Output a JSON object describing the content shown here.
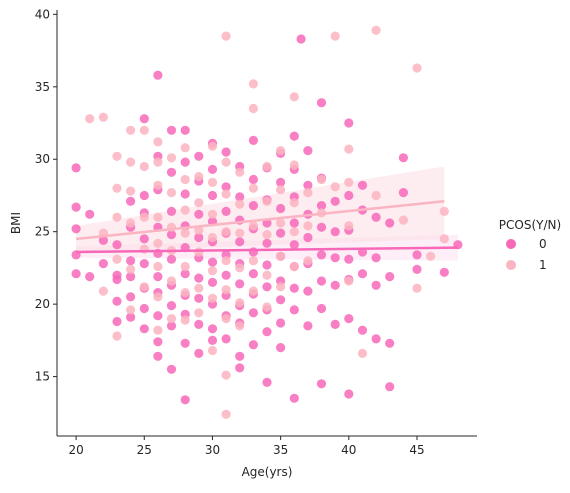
{
  "chart_data": {
    "type": "scatter",
    "title": "",
    "xlabel": "Age(yrs)",
    "ylabel": "BMI",
    "xlim": [
      18.6,
      49.4
    ],
    "ylim": [
      10.9,
      40.3
    ],
    "xticks": [
      20,
      25,
      30,
      35,
      40,
      45
    ],
    "yticks": [
      15,
      20,
      25,
      30,
      35,
      40
    ],
    "grid": false,
    "legend": {
      "title": "PCOS(Y/N)",
      "placement": "center-right outside",
      "entries": [
        "0",
        "1"
      ]
    },
    "series": [
      {
        "name": "0",
        "color": "#f768b8",
        "band_color": "#fde3f1",
        "regression": {
          "x": [
            20,
            48
          ],
          "y": [
            23.6,
            23.9
          ],
          "ci_low": [
            23.2,
            23.0
          ],
          "ci_high": [
            24.0,
            24.8
          ]
        },
        "points": [
          [
            20,
            29.4
          ],
          [
            20,
            26.7
          ],
          [
            20,
            25.2
          ],
          [
            20,
            23.4
          ],
          [
            20,
            22.1
          ],
          [
            21,
            26.2
          ],
          [
            21,
            21.9
          ],
          [
            22,
            24.4
          ],
          [
            22,
            22.8
          ],
          [
            23,
            24.1
          ],
          [
            23,
            22.0
          ],
          [
            23,
            21.7
          ],
          [
            23,
            20.2
          ],
          [
            23,
            18.8
          ],
          [
            24,
            27.1
          ],
          [
            24,
            25.3
          ],
          [
            24,
            23.0
          ],
          [
            24,
            21.9
          ],
          [
            24,
            20.5
          ],
          [
            24,
            19.1
          ],
          [
            25,
            32.8
          ],
          [
            25,
            27.5
          ],
          [
            25,
            26.3
          ],
          [
            25,
            24.5
          ],
          [
            25,
            22.8
          ],
          [
            25,
            21.1
          ],
          [
            25,
            19.7
          ],
          [
            25,
            18.3
          ],
          [
            26,
            35.8
          ],
          [
            26,
            30.2
          ],
          [
            26,
            27.9
          ],
          [
            26,
            25.3
          ],
          [
            26,
            23.5
          ],
          [
            26,
            21.9
          ],
          [
            26,
            20.8
          ],
          [
            26,
            19.2
          ],
          [
            26,
            17.4
          ],
          [
            26,
            16.4
          ],
          [
            27,
            32.0
          ],
          [
            27,
            29.1
          ],
          [
            27,
            26.4
          ],
          [
            27,
            24.8
          ],
          [
            27,
            23.1
          ],
          [
            27,
            21.3
          ],
          [
            27,
            19.9
          ],
          [
            27,
            18.5
          ],
          [
            27,
            15.5
          ],
          [
            28,
            32.0
          ],
          [
            28,
            29.8
          ],
          [
            28,
            27.6
          ],
          [
            28,
            25.4
          ],
          [
            28,
            23.9
          ],
          [
            28,
            22.1
          ],
          [
            28,
            20.6
          ],
          [
            28,
            19.3
          ],
          [
            28,
            17.3
          ],
          [
            28,
            13.4
          ],
          [
            29,
            30.2
          ],
          [
            29,
            28.5
          ],
          [
            29,
            26.2
          ],
          [
            29,
            24.6
          ],
          [
            29,
            23.2
          ],
          [
            29,
            21.8
          ],
          [
            29,
            20.4
          ],
          [
            29,
            18.6
          ],
          [
            29,
            16.6
          ],
          [
            30,
            31.1
          ],
          [
            30,
            29.3
          ],
          [
            30,
            27.5
          ],
          [
            30,
            25.7
          ],
          [
            30,
            24.3
          ],
          [
            30,
            22.9
          ],
          [
            30,
            21.5
          ],
          [
            30,
            20.0
          ],
          [
            30,
            18.3
          ],
          [
            30,
            17.5
          ],
          [
            31,
            30.5
          ],
          [
            31,
            28.1
          ],
          [
            31,
            26.4
          ],
          [
            31,
            24.9
          ],
          [
            31,
            23.4
          ],
          [
            31,
            22.0
          ],
          [
            31,
            20.6
          ],
          [
            31,
            19.2
          ],
          [
            31,
            17.6
          ],
          [
            32,
            29.5
          ],
          [
            32,
            27.4
          ],
          [
            32,
            25.8
          ],
          [
            32,
            24.3
          ],
          [
            32,
            22.8
          ],
          [
            32,
            21.4
          ],
          [
            32,
            19.9
          ],
          [
            32,
            18.7
          ],
          [
            32,
            16.4
          ],
          [
            32,
            15.6
          ],
          [
            33,
            31.3
          ],
          [
            33,
            28.6
          ],
          [
            33,
            26.8
          ],
          [
            33,
            25.2
          ],
          [
            33,
            23.6
          ],
          [
            33,
            22.1
          ],
          [
            33,
            20.7
          ],
          [
            33,
            19.4
          ],
          [
            33,
            17.2
          ],
          [
            34,
            29.4
          ],
          [
            34,
            27.2
          ],
          [
            34,
            25.6
          ],
          [
            34,
            24.2
          ],
          [
            34,
            22.7
          ],
          [
            34,
            21.2
          ],
          [
            34,
            19.6
          ],
          [
            34,
            18.1
          ],
          [
            34,
            14.6
          ],
          [
            35,
            30.4
          ],
          [
            35,
            28.4
          ],
          [
            35,
            26.6
          ],
          [
            35,
            24.9
          ],
          [
            35,
            23.3
          ],
          [
            35,
            21.6
          ],
          [
            35,
            20.3
          ],
          [
            35,
            18.7
          ],
          [
            35,
            17.0
          ],
          [
            36,
            31.6
          ],
          [
            36,
            29.3
          ],
          [
            36,
            27.4
          ],
          [
            36,
            25.6
          ],
          [
            36,
            24.1
          ],
          [
            36,
            22.6
          ],
          [
            36,
            21.1
          ],
          [
            36,
            19.6
          ],
          [
            36,
            13.5
          ],
          [
            36.5,
            38.3
          ],
          [
            37,
            30.6
          ],
          [
            37,
            28.2
          ],
          [
            37,
            26.2
          ],
          [
            37,
            24.6
          ],
          [
            37,
            22.8
          ],
          [
            37,
            20.9
          ],
          [
            37,
            18.5
          ],
          [
            38,
            33.9
          ],
          [
            38,
            28.7
          ],
          [
            38,
            26.8
          ],
          [
            38,
            25.3
          ],
          [
            38,
            23.4
          ],
          [
            38,
            21.6
          ],
          [
            38,
            19.7
          ],
          [
            38,
            14.5
          ],
          [
            39,
            27.1
          ],
          [
            39,
            25.0
          ],
          [
            39,
            23.2
          ],
          [
            39,
            21.3
          ],
          [
            39,
            18.6
          ],
          [
            40,
            32.5
          ],
          [
            40,
            27.5
          ],
          [
            40,
            25.1
          ],
          [
            40,
            23.1
          ],
          [
            40,
            21.7
          ],
          [
            40,
            19.0
          ],
          [
            40,
            13.8
          ],
          [
            41,
            28.2
          ],
          [
            41,
            26.5
          ],
          [
            41,
            23.6
          ],
          [
            41,
            22.1
          ],
          [
            41,
            18.2
          ],
          [
            42,
            26.0
          ],
          [
            42,
            23.2
          ],
          [
            42,
            21.3
          ],
          [
            42,
            17.6
          ],
          [
            43,
            25.6
          ],
          [
            43,
            21.9
          ],
          [
            43,
            17.3
          ],
          [
            43,
            14.3
          ],
          [
            44,
            30.1
          ],
          [
            44,
            27.7
          ],
          [
            45,
            23.4
          ],
          [
            45,
            22.4
          ],
          [
            47,
            22.2
          ],
          [
            48,
            24.1
          ]
        ]
      },
      {
        "name": "1",
        "color": "#fbb4c1",
        "band_color": "#fbe0e6",
        "regression": {
          "x": [
            20,
            47
          ],
          "y": [
            24.5,
            27.1
          ],
          "ci_low": [
            23.6,
            24.5
          ],
          "ci_high": [
            25.4,
            29.5
          ]
        },
        "points": [
          [
            21,
            32.8
          ],
          [
            22,
            32.9
          ],
          [
            22,
            24.9
          ],
          [
            22,
            20.9
          ],
          [
            23,
            30.2
          ],
          [
            23,
            28.0
          ],
          [
            23,
            26.0
          ],
          [
            23,
            23.1
          ],
          [
            23,
            17.8
          ],
          [
            24,
            32.0
          ],
          [
            24,
            29.8
          ],
          [
            24,
            27.8
          ],
          [
            24,
            25.6
          ],
          [
            24,
            22.4
          ],
          [
            24,
            19.6
          ],
          [
            25,
            32.0
          ],
          [
            25,
            29.5
          ],
          [
            25,
            26.0
          ],
          [
            25,
            23.8
          ],
          [
            25,
            21.2
          ],
          [
            26,
            31.2
          ],
          [
            26,
            29.8
          ],
          [
            26,
            28.2
          ],
          [
            26,
            26.0
          ],
          [
            26,
            24.2
          ],
          [
            26,
            22.6
          ],
          [
            26,
            20.5
          ],
          [
            26,
            18.2
          ],
          [
            27,
            30.1
          ],
          [
            27,
            27.7
          ],
          [
            27,
            25.3
          ],
          [
            27,
            23.7
          ],
          [
            27,
            21.6
          ],
          [
            27,
            19.0
          ],
          [
            28,
            30.8
          ],
          [
            28,
            28.6
          ],
          [
            28,
            26.5
          ],
          [
            28,
            24.9
          ],
          [
            28,
            22.6
          ],
          [
            28,
            20.8
          ],
          [
            28,
            18.9
          ],
          [
            29,
            28.8
          ],
          [
            29,
            27.0
          ],
          [
            29,
            25.1
          ],
          [
            29,
            23.6
          ],
          [
            29,
            21.1
          ],
          [
            29,
            19.4
          ],
          [
            30,
            30.9
          ],
          [
            30,
            28.4
          ],
          [
            30,
            26.2
          ],
          [
            30,
            24.6
          ],
          [
            30,
            22.3
          ],
          [
            30,
            20.4
          ],
          [
            30,
            16.8
          ],
          [
            31,
            38.5
          ],
          [
            31,
            29.8
          ],
          [
            31,
            27.6
          ],
          [
            31,
            25.0
          ],
          [
            31,
            23.0
          ],
          [
            31,
            21.0
          ],
          [
            31,
            19.0
          ],
          [
            31,
            15.1
          ],
          [
            31,
            12.4
          ],
          [
            32,
            29.1
          ],
          [
            32,
            26.9
          ],
          [
            32,
            24.9
          ],
          [
            32,
            22.5
          ],
          [
            32,
            20.1
          ],
          [
            32,
            18.5
          ],
          [
            33,
            35.2
          ],
          [
            33,
            33.5
          ],
          [
            33,
            28.0
          ],
          [
            33,
            25.4
          ],
          [
            33,
            23.0
          ],
          [
            33,
            20.9
          ],
          [
            34,
            29.5
          ],
          [
            34,
            27.1
          ],
          [
            34,
            24.8
          ],
          [
            34,
            22.0
          ],
          [
            34,
            19.8
          ],
          [
            35,
            30.6
          ],
          [
            35,
            27.9
          ],
          [
            35,
            25.6
          ],
          [
            35,
            23.3
          ],
          [
            35,
            21.2
          ],
          [
            36,
            34.3
          ],
          [
            36,
            29.6
          ],
          [
            36,
            27.0
          ],
          [
            36,
            25.0
          ],
          [
            36,
            22.6
          ],
          [
            37,
            27.7
          ],
          [
            37,
            25.4
          ],
          [
            37,
            23.0
          ],
          [
            38,
            28.6
          ],
          [
            38,
            26.3
          ],
          [
            39,
            38.5
          ],
          [
            39,
            28.1
          ],
          [
            40,
            30.7
          ],
          [
            40,
            28.4
          ],
          [
            40,
            25.4
          ],
          [
            40,
            21.6
          ],
          [
            41,
            16.6
          ],
          [
            42,
            38.9
          ],
          [
            42,
            27.5
          ],
          [
            44,
            25.8
          ],
          [
            45,
            36.3
          ],
          [
            45,
            21.1
          ],
          [
            46,
            23.3
          ],
          [
            47,
            26.4
          ],
          [
            47,
            24.5
          ]
        ]
      }
    ]
  }
}
